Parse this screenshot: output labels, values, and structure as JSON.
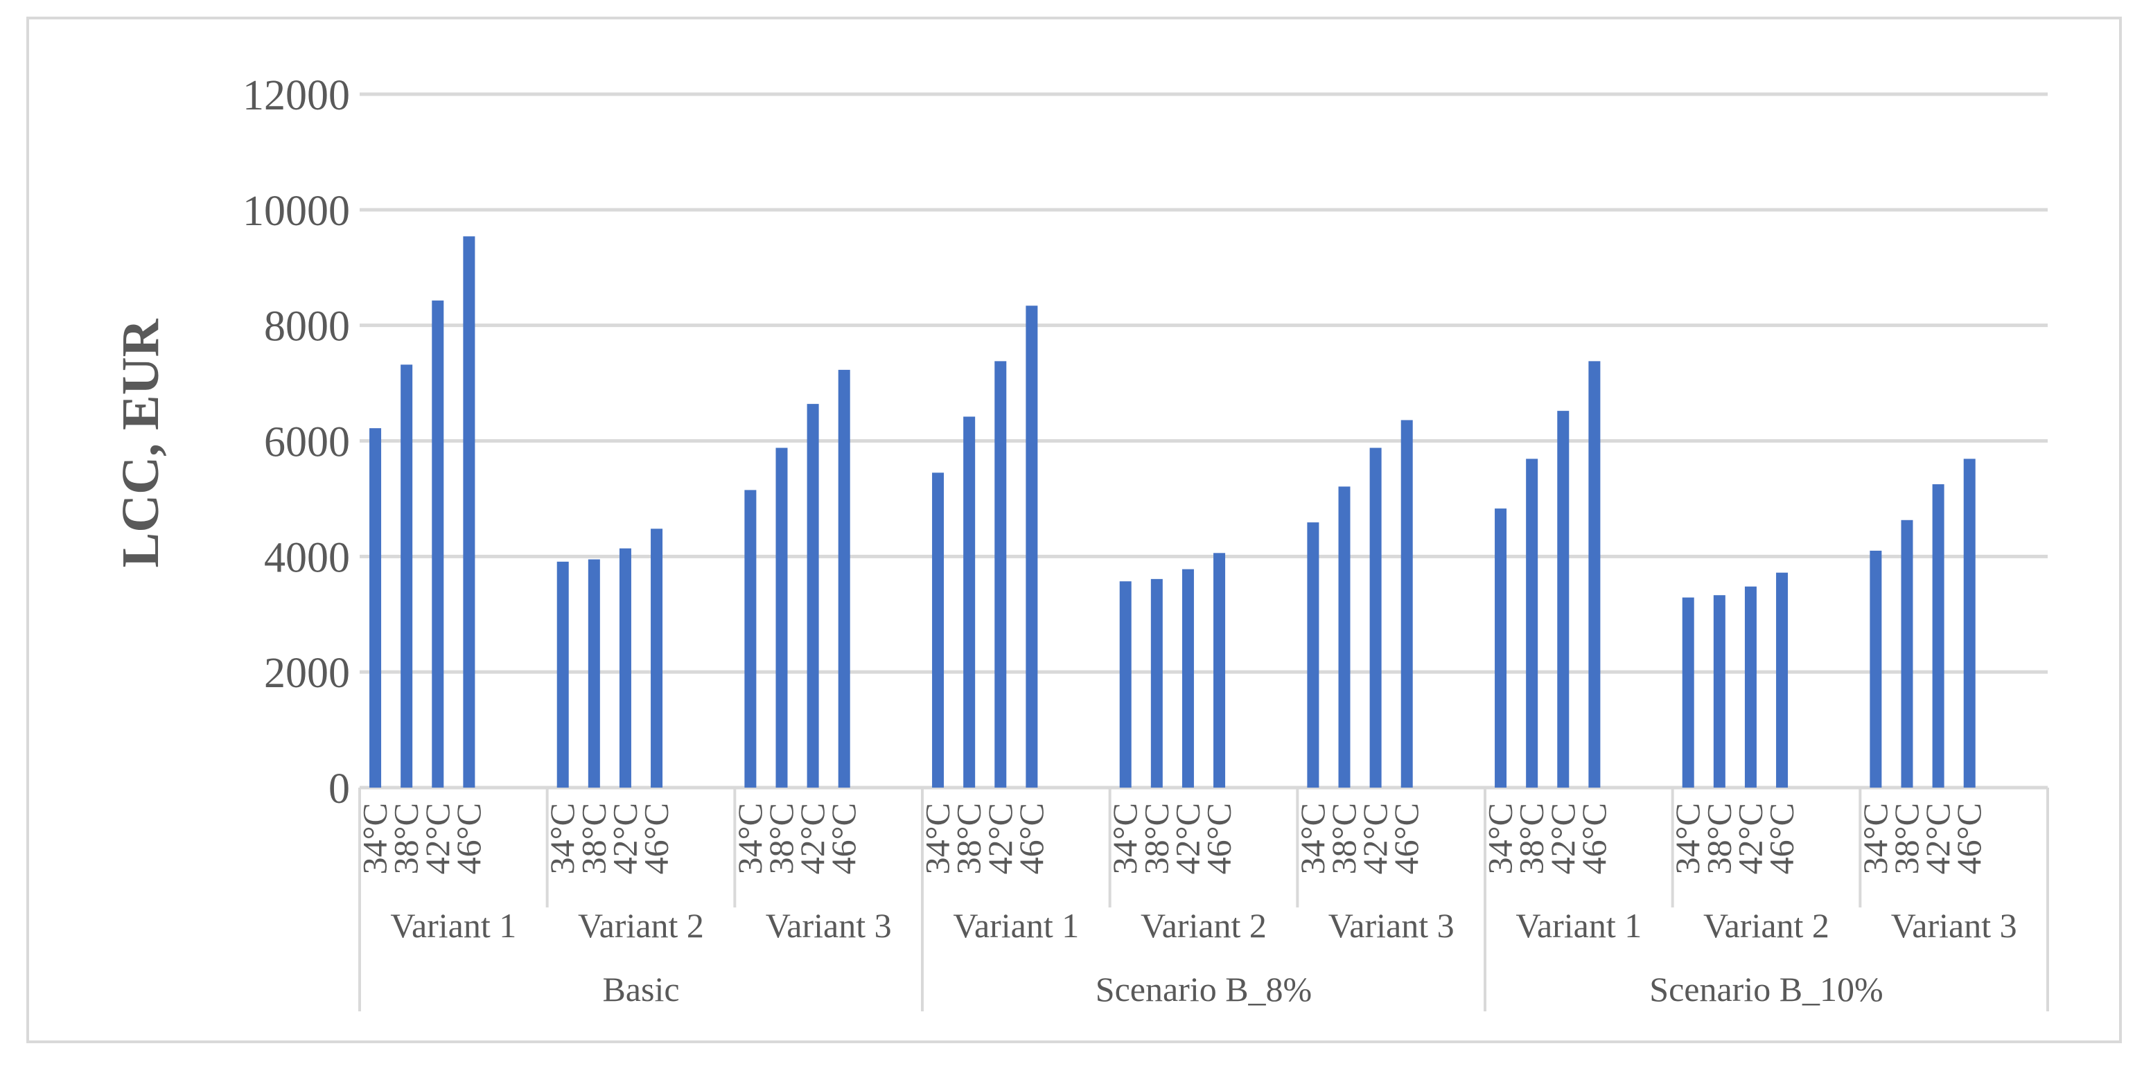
{
  "chart_data": {
    "type": "bar",
    "title": "",
    "xlabel": "",
    "ylabel": "LCC, EUR",
    "ylim": [
      0,
      12000
    ],
    "y_ticks": [
      0,
      2000,
      4000,
      6000,
      8000,
      10000,
      12000
    ],
    "grid": true,
    "legend": "none",
    "bar_color": "#4472C4",
    "grid_color": "#D9D9D9",
    "text_color": "#595959",
    "groups": [
      {
        "label": "Basic",
        "variants": [
          {
            "label": "Variant 1",
            "bars": [
              {
                "category": "34°C",
                "value": 6220
              },
              {
                "category": "38°C",
                "value": 7320
              },
              {
                "category": "42°C",
                "value": 8430
              },
              {
                "category": "46°C",
                "value": 9540
              }
            ]
          },
          {
            "label": "Variant 2",
            "bars": [
              {
                "category": "34°C",
                "value": 3910
              },
              {
                "category": "38°C",
                "value": 3950
              },
              {
                "category": "42°C",
                "value": 4140
              },
              {
                "category": "46°C",
                "value": 4480
              }
            ]
          },
          {
            "label": "Variant 3",
            "bars": [
              {
                "category": "34°C",
                "value": 5150
              },
              {
                "category": "38°C",
                "value": 5880
              },
              {
                "category": "42°C",
                "value": 6640
              },
              {
                "category": "46°C",
                "value": 7230
              }
            ]
          }
        ]
      },
      {
        "label": "Scenario B_8%",
        "variants": [
          {
            "label": "Variant 1",
            "bars": [
              {
                "category": "34°C",
                "value": 5450
              },
              {
                "category": "38°C",
                "value": 6420
              },
              {
                "category": "42°C",
                "value": 7380
              },
              {
                "category": "46°C",
                "value": 8340
              }
            ]
          },
          {
            "label": "Variant 2",
            "bars": [
              {
                "category": "34°C",
                "value": 3570
              },
              {
                "category": "38°C",
                "value": 3610
              },
              {
                "category": "42°C",
                "value": 3780
              },
              {
                "category": "46°C",
                "value": 4060
              }
            ]
          },
          {
            "label": "Variant 3",
            "bars": [
              {
                "category": "34°C",
                "value": 4590
              },
              {
                "category": "38°C",
                "value": 5210
              },
              {
                "category": "42°C",
                "value": 5880
              },
              {
                "category": "46°C",
                "value": 6360
              }
            ]
          }
        ]
      },
      {
        "label": "Scenario B_10%",
        "variants": [
          {
            "label": "Variant 1",
            "bars": [
              {
                "category": "34°C",
                "value": 4830
              },
              {
                "category": "38°C",
                "value": 5690
              },
              {
                "category": "42°C",
                "value": 6520
              },
              {
                "category": "46°C",
                "value": 7380
              }
            ]
          },
          {
            "label": "Variant 2",
            "bars": [
              {
                "category": "34°C",
                "value": 3290
              },
              {
                "category": "38°C",
                "value": 3330
              },
              {
                "category": "42°C",
                "value": 3480
              },
              {
                "category": "46°C",
                "value": 3720
              }
            ]
          },
          {
            "label": "Variant 3",
            "bars": [
              {
                "category": "34°C",
                "value": 4100
              },
              {
                "category": "38°C",
                "value": 4630
              },
              {
                "category": "42°C",
                "value": 5250
              },
              {
                "category": "46°C",
                "value": 5690
              }
            ]
          }
        ]
      }
    ]
  }
}
